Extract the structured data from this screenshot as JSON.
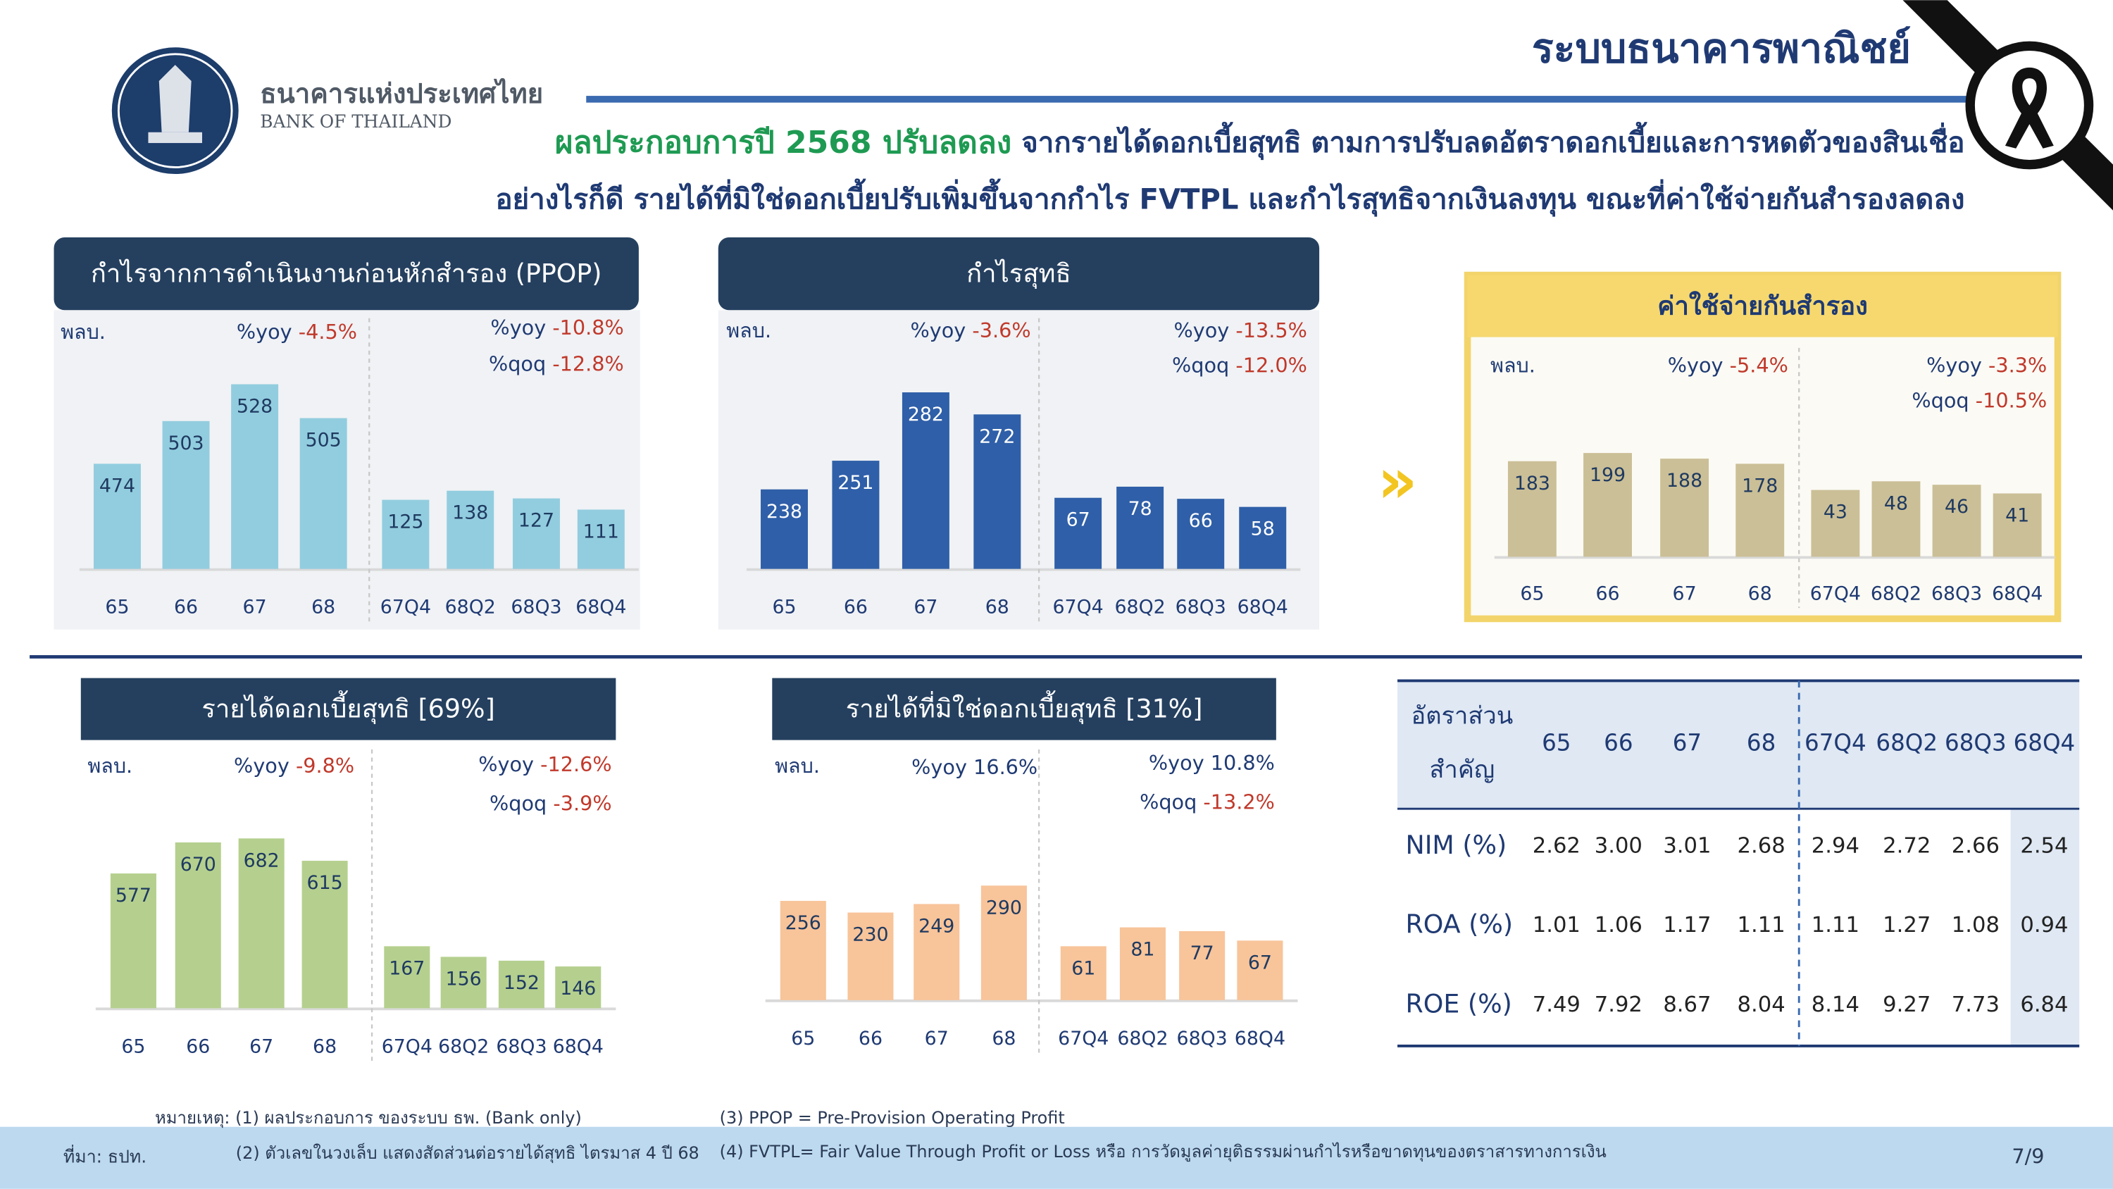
{
  "header": {
    "title": "ระบบธนาคารพาณิชย์",
    "bank_name_th": "ธนาคารแห่งประเทศไทย",
    "bank_name_en": "BANK OF THAILAND",
    "headline_highlight": "ผลประกอบการปี 2568 ปรับลดลง",
    "headline_line1": " จากรายได้ดอกเบี้ยสุทธิ ตามการปรับลดอัตราดอกเบี้ยและการหดตัวของสินเชื่อ",
    "headline_line2": "อย่างไรก็ดี รายได้ที่มิใช่ดอกเบี้ยปรับเพิ่มขึ้นจากกำไร FVTPL และกำไรสุทธิจากเงินลงทุน ขณะที่ค่าใช้จ่ายกันสำรองลดลง"
  },
  "chart_data": [
    {
      "type": "bar",
      "title": "กำไรจากการดำเนินงานก่อนหักสำรอง (PPOP)",
      "unit": "พลบ.",
      "categories": [
        "65",
        "66",
        "67",
        "68",
        "67Q4",
        "68Q2",
        "68Q3",
        "68Q4"
      ],
      "values": [
        474,
        503,
        528,
        505,
        125,
        138,
        127,
        111
      ],
      "color": "#92cddf",
      "label_color": "#1f3a60",
      "annotations_annual": [
        {
          "label": "%yoy",
          "value": "-4.5%"
        }
      ],
      "annotations_quarterly": [
        {
          "label": "%yoy",
          "value": "-10.8%"
        },
        {
          "label": "%qoq",
          "value": "-12.8%"
        }
      ]
    },
    {
      "type": "bar",
      "title": "กำไรสุทธิ",
      "unit": "พลบ.",
      "categories": [
        "65",
        "66",
        "67",
        "68",
        "67Q4",
        "68Q2",
        "68Q3",
        "68Q4"
      ],
      "values": [
        238,
        251,
        282,
        272,
        67,
        78,
        66,
        58
      ],
      "color": "#2f5fa8",
      "label_color": "#ffffff",
      "annotations_annual": [
        {
          "label": "%yoy",
          "value": "-3.6%"
        }
      ],
      "annotations_quarterly": [
        {
          "label": "%yoy",
          "value": "-13.5%"
        },
        {
          "label": "%qoq",
          "value": "-12.0%"
        }
      ]
    },
    {
      "type": "bar",
      "title": "ค่าใช้จ่ายกันสำรอง",
      "unit": "พลบ.",
      "categories": [
        "65",
        "66",
        "67",
        "68",
        "67Q4",
        "68Q2",
        "68Q3",
        "68Q4"
      ],
      "values": [
        183,
        199,
        188,
        178,
        43,
        48,
        46,
        41
      ],
      "color": "#cbbf97",
      "label_color": "#1f3a60",
      "annotations_annual": [
        {
          "label": "%yoy",
          "value": "-5.4%"
        }
      ],
      "annotations_quarterly": [
        {
          "label": "%yoy",
          "value": "-3.3%"
        },
        {
          "label": "%qoq",
          "value": "-10.5%"
        }
      ]
    },
    {
      "type": "bar",
      "title": "รายได้ดอกเบี้ยสุทธิ [69%]",
      "unit": "พลบ.",
      "categories": [
        "65",
        "66",
        "67",
        "68",
        "67Q4",
        "68Q2",
        "68Q3",
        "68Q4"
      ],
      "values": [
        577,
        670,
        682,
        615,
        167,
        156,
        152,
        146
      ],
      "color": "#b5d08e",
      "label_color": "#1f3a60",
      "annotations_annual": [
        {
          "label": "%yoy",
          "value": "-9.8%"
        }
      ],
      "annotations_quarterly": [
        {
          "label": "%yoy",
          "value": "-12.6%"
        },
        {
          "label": "%qoq",
          "value": "-3.9%"
        }
      ]
    },
    {
      "type": "bar",
      "title": "รายได้ที่มิใช่ดอกเบี้ยสุทธิ [31%]",
      "unit": "พลบ.",
      "categories": [
        "65",
        "66",
        "67",
        "68",
        "67Q4",
        "68Q2",
        "68Q3",
        "68Q4"
      ],
      "values": [
        256,
        230,
        249,
        290,
        61,
        81,
        77,
        67
      ],
      "color": "#f8c49a",
      "label_color": "#1f3a60",
      "annotations_annual": [
        {
          "label": "%yoy",
          "value": "16.6%"
        }
      ],
      "annotations_quarterly": [
        {
          "label": "%yoy",
          "value": "10.8%"
        },
        {
          "label": "%qoq",
          "value": "-13.2%"
        }
      ]
    }
  ],
  "table": {
    "header_label": [
      "อัตราส่วน",
      "สำคัญ"
    ],
    "columns": [
      "65",
      "66",
      "67",
      "68",
      "67Q4",
      "68Q2",
      "68Q3",
      "68Q4"
    ],
    "rows": [
      {
        "label": "NIM (%)",
        "values": [
          "2.62",
          "3.00",
          "3.01",
          "2.68",
          "2.94",
          "2.72",
          "2.66",
          "2.54"
        ]
      },
      {
        "label": "ROA (%)",
        "values": [
          "1.01",
          "1.06",
          "1.17",
          "1.11",
          "1.11",
          "1.27",
          "1.08",
          "0.94"
        ]
      },
      {
        "label": "ROE (%)",
        "values": [
          "7.49",
          "7.92",
          "8.67",
          "8.04",
          "8.14",
          "9.27",
          "7.73",
          "6.84"
        ]
      }
    ]
  },
  "footer": {
    "note_1": "หมายเหตุ: (1) ผลประกอบการ ของระบบ ธพ. (Bank only)",
    "note_2": "(2) ตัวเลขในวงเล็บ แสดงสัดส่วนต่อรายได้สุทธิ ไตรมาส 4 ปี 68",
    "note_3": "(3) PPOP = Pre-Provision Operating Profit",
    "note_4": "(4) FVTPL= Fair Value Through Profit or Loss หรือ การวัดมูลค่ายุติธรรมผ่านกำไรหรือขาดทุนของตราสารทางการเงิน",
    "source": "ที่มา: ธปท.",
    "page": "7/9"
  }
}
